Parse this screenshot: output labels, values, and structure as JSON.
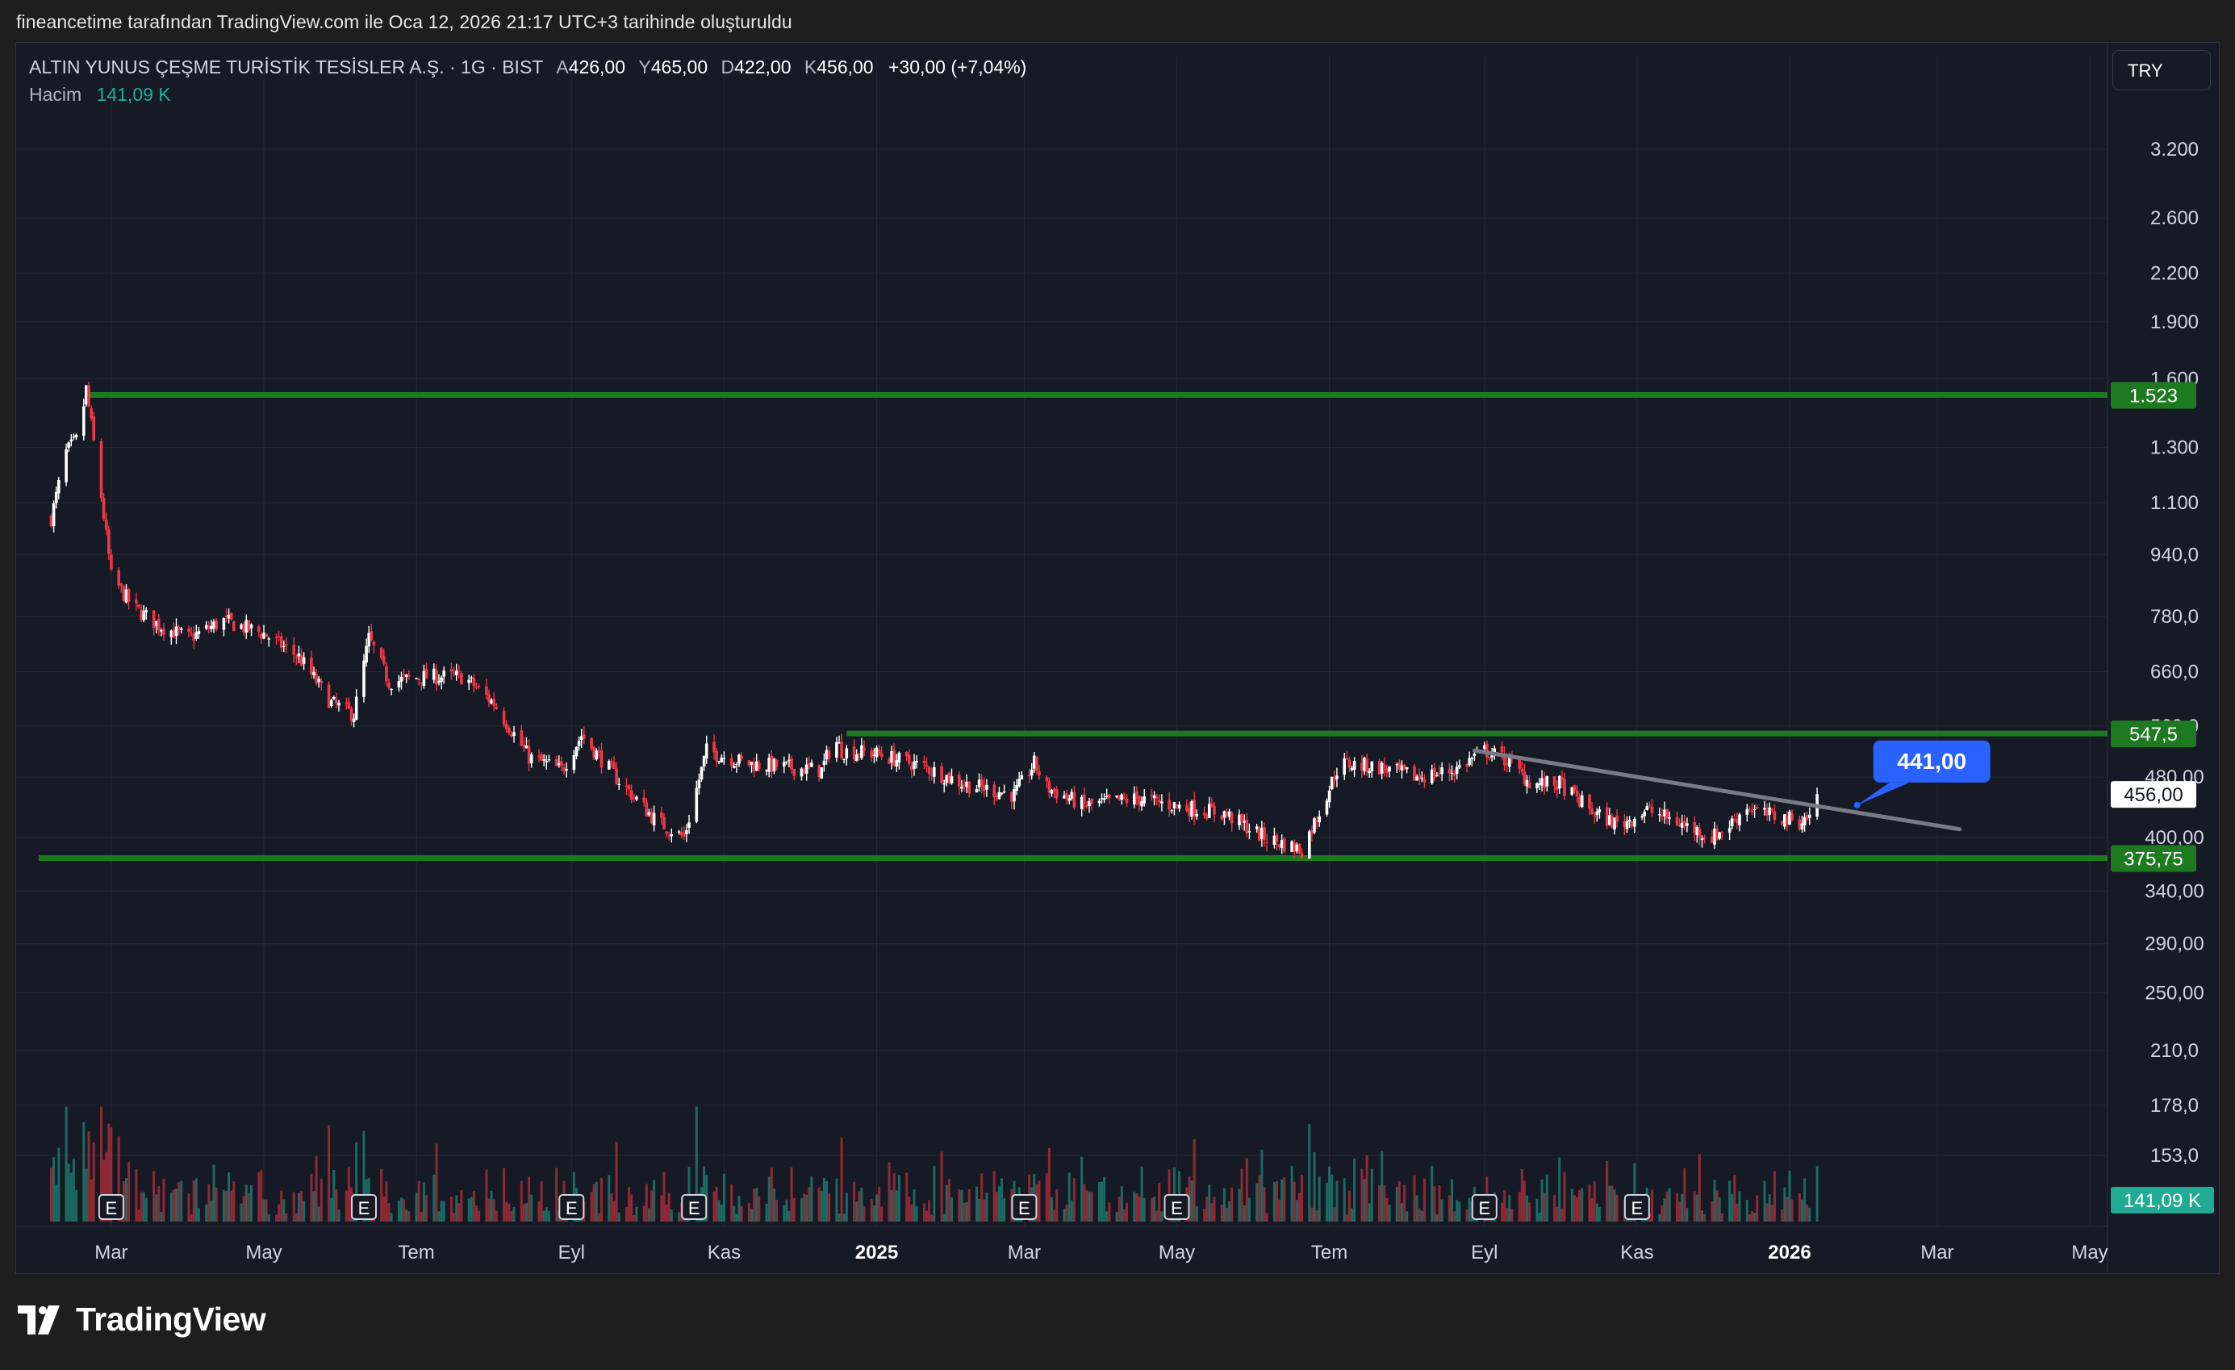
{
  "caption": "fineancetime tarafından TradingView.com ile Oca 12, 2026 21:17 UTC+3 tarihinde oluşturuldu",
  "header": {
    "symbol": "ALTIN YUNUS ÇEŞME TURİSTİK TESİSLER A.Ş. · 1G · BIST",
    "open_label": "A",
    "open": "426,00",
    "high_label": "Y",
    "high": "465,00",
    "low_label": "D",
    "low": "422,00",
    "close_label": "K",
    "close": "456,00",
    "change": "+30,00 (+7,04%)",
    "volume_name": "Hacim",
    "volume_value": "141,09 K",
    "currency": "TRY"
  },
  "logo": {
    "text": "TradingView"
  },
  "colors": {
    "up": "#ffffff",
    "down": "#f23645",
    "level": "#1e7a21",
    "trend": "#787b86",
    "callout": "#2962ff",
    "vol_up": "#22ab94",
    "vol_down": "#f23645"
  },
  "chart_data": {
    "type": "candlestick",
    "y_scale": "log",
    "ylim": [
      120,
      3800
    ],
    "y_ticks": [
      "3.200",
      "2.600",
      "2.200",
      "1.900",
      "1.600",
      "1.300",
      "1.100",
      "940,0",
      "780,0",
      "660,0",
      "560,0",
      "480,00",
      "400,00",
      "340,00",
      "290,00",
      "250,00",
      "210,0",
      "178,0",
      "153,0"
    ],
    "x_ticks": [
      {
        "label": "Mar",
        "date": "2024-03-01",
        "bold": false
      },
      {
        "label": "May",
        "date": "2024-05-01",
        "bold": false
      },
      {
        "label": "Tem",
        "date": "2024-07-01",
        "bold": false
      },
      {
        "label": "Eyl",
        "date": "2024-09-01",
        "bold": false
      },
      {
        "label": "Kas",
        "date": "2024-11-01",
        "bold": false
      },
      {
        "label": "2025",
        "date": "2025-01-01",
        "bold": true
      },
      {
        "label": "Mar",
        "date": "2025-03-01",
        "bold": false
      },
      {
        "label": "May",
        "date": "2025-05-01",
        "bold": false
      },
      {
        "label": "Tem",
        "date": "2025-07-01",
        "bold": false
      },
      {
        "label": "Eyl",
        "date": "2025-09-01",
        "bold": false
      },
      {
        "label": "Kas",
        "date": "2025-11-01",
        "bold": false
      },
      {
        "label": "2026",
        "date": "2026-01-01",
        "bold": true
      },
      {
        "label": "Mar",
        "date": "2026-03-01",
        "bold": false
      },
      {
        "label": "May",
        "date": "2026-05-01",
        "bold": false
      }
    ],
    "price_path": [
      [
        "2024-02-06",
        1050
      ],
      [
        "2024-02-12",
        1280
      ],
      [
        "2024-02-17",
        1340
      ],
      [
        "2024-02-20",
        1550
      ],
      [
        "2024-02-26",
        1120
      ],
      [
        "2024-03-01",
        880
      ],
      [
        "2024-03-10",
        800
      ],
      [
        "2024-03-20",
        760
      ],
      [
        "2024-04-01",
        730
      ],
      [
        "2024-04-15",
        770
      ],
      [
        "2024-05-01",
        740
      ],
      [
        "2024-05-15",
        690
      ],
      [
        "2024-05-28",
        600
      ],
      [
        "2024-06-06",
        580
      ],
      [
        "2024-06-12",
        730
      ],
      [
        "2024-06-20",
        640
      ],
      [
        "2024-07-05",
        650
      ],
      [
        "2024-07-20",
        650
      ],
      [
        "2024-08-01",
        600
      ],
      [
        "2024-08-15",
        510
      ],
      [
        "2024-08-28",
        490
      ],
      [
        "2024-09-05",
        545
      ],
      [
        "2024-09-20",
        475
      ],
      [
        "2024-10-05",
        420
      ],
      [
        "2024-10-16",
        400
      ],
      [
        "2024-10-25",
        520
      ],
      [
        "2024-11-10",
        500
      ],
      [
        "2024-11-25",
        495
      ],
      [
        "2024-12-10",
        490
      ],
      [
        "2024-12-15",
        540
      ],
      [
        "2024-12-18",
        520
      ],
      [
        "2025-01-01",
        515
      ],
      [
        "2025-01-20",
        495
      ],
      [
        "2025-02-05",
        470
      ],
      [
        "2025-02-25",
        455
      ],
      [
        "2025-03-05",
        500
      ],
      [
        "2025-03-10",
        465
      ],
      [
        "2025-03-25",
        440
      ],
      [
        "2025-04-15",
        450
      ],
      [
        "2025-05-01",
        440
      ],
      [
        "2025-05-20",
        430
      ],
      [
        "2025-06-05",
        400
      ],
      [
        "2025-06-20",
        385
      ],
      [
        "2025-06-28",
        440
      ],
      [
        "2025-07-05",
        500
      ],
      [
        "2025-07-20",
        495
      ],
      [
        "2025-08-05",
        480
      ],
      [
        "2025-08-20",
        490
      ],
      [
        "2025-09-01",
        520
      ],
      [
        "2025-09-10",
        505
      ],
      [
        "2025-09-20",
        470
      ],
      [
        "2025-10-01",
        470
      ],
      [
        "2025-10-15",
        430
      ],
      [
        "2025-10-25",
        415
      ],
      [
        "2025-11-05",
        435
      ],
      [
        "2025-11-20",
        415
      ],
      [
        "2025-12-01",
        400
      ],
      [
        "2025-12-08",
        415
      ],
      [
        "2025-12-15",
        440
      ],
      [
        "2025-12-20",
        430
      ],
      [
        "2025-12-28",
        425
      ],
      [
        "2026-01-05",
        420
      ],
      [
        "2026-01-09",
        426
      ],
      [
        "2026-01-12",
        456
      ]
    ],
    "last_candle": {
      "date": "2026-01-12",
      "open": 426,
      "high": 465,
      "low": 422,
      "close": 456
    },
    "horizontal_levels": [
      {
        "label": "1.523",
        "price": 1523,
        "from": "2024-02-20"
      },
      {
        "label": "547,5",
        "price": 547.5,
        "from": "2024-12-20"
      },
      {
        "label": "375,75",
        "price": 375.75,
        "from": "2024-02-01"
      }
    ],
    "trendline": {
      "from_date": "2025-08-28",
      "from_price": 520,
      "to_date": "2026-03-10",
      "to_price": 410
    },
    "callout": {
      "label": "441,00",
      "date": "2026-01-28",
      "price": 441
    },
    "last_price_label": "456,00",
    "volume_label": "141,09 K",
    "earnings_markers": {
      "label": "E",
      "dates": [
        "2024-03-01",
        "2024-06-10",
        "2024-09-01",
        "2024-10-20",
        "2025-03-01",
        "2025-05-01",
        "2025-09-01",
        "2025-11-01"
      ]
    }
  }
}
